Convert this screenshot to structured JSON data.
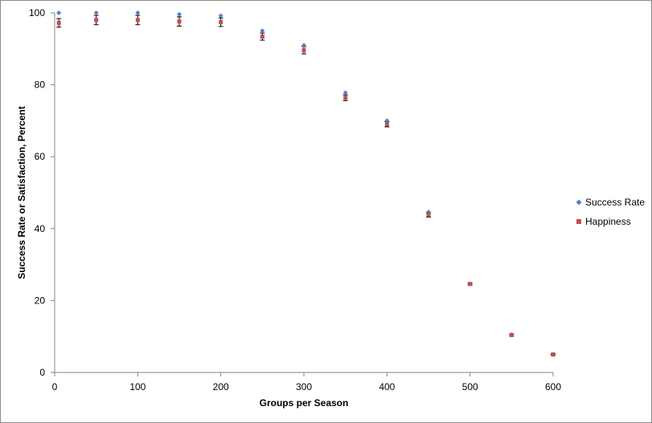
{
  "chart_data": {
    "type": "scatter",
    "title": "",
    "xlabel": "Groups per Season",
    "ylabel": "Success Rate or Satisfaction, Percent",
    "xlim": [
      0,
      600
    ],
    "ylim": [
      0,
      100
    ],
    "xticks": [
      0,
      100,
      200,
      300,
      400,
      500,
      600
    ],
    "yticks": [
      0,
      20,
      40,
      60,
      80,
      100
    ],
    "grid": false,
    "legend_position": "right",
    "series": [
      {
        "name": "Success Rate",
        "color": "#4f81bd",
        "marker": "diamond",
        "points": [
          {
            "x": 5,
            "y": 100
          },
          {
            "x": 50,
            "y": 100
          },
          {
            "x": 100,
            "y": 100
          },
          {
            "x": 150,
            "y": 99.6
          },
          {
            "x": 200,
            "y": 99.2
          },
          {
            "x": 250,
            "y": 95
          },
          {
            "x": 300,
            "y": 91
          },
          {
            "x": 350,
            "y": 77.8
          },
          {
            "x": 400,
            "y": 70
          },
          {
            "x": 450,
            "y": 44.6
          },
          {
            "x": 500,
            "y": 24.6
          },
          {
            "x": 550,
            "y": 10.5
          },
          {
            "x": 600,
            "y": 5
          }
        ]
      },
      {
        "name": "Happiness",
        "color": "#c0504d",
        "marker": "square",
        "points": [
          {
            "x": 5,
            "y": 97.2,
            "err": 1.2
          },
          {
            "x": 50,
            "y": 98,
            "err": 1.3
          },
          {
            "x": 100,
            "y": 98,
            "err": 1.3
          },
          {
            "x": 150,
            "y": 97.6,
            "err": 1.3
          },
          {
            "x": 200,
            "y": 97.4,
            "err": 1.2
          },
          {
            "x": 250,
            "y": 93.4,
            "err": 1.0
          },
          {
            "x": 300,
            "y": 89.6,
            "err": 1.0
          },
          {
            "x": 350,
            "y": 76.4,
            "err": 0.8
          },
          {
            "x": 400,
            "y": 69,
            "err": 0.7
          },
          {
            "x": 450,
            "y": 43.8,
            "err": 0.6
          },
          {
            "x": 500,
            "y": 24.6,
            "err": 0.3
          },
          {
            "x": 550,
            "y": 10.4,
            "err": 0.3
          },
          {
            "x": 600,
            "y": 5,
            "err": 0.2
          }
        ]
      }
    ]
  }
}
